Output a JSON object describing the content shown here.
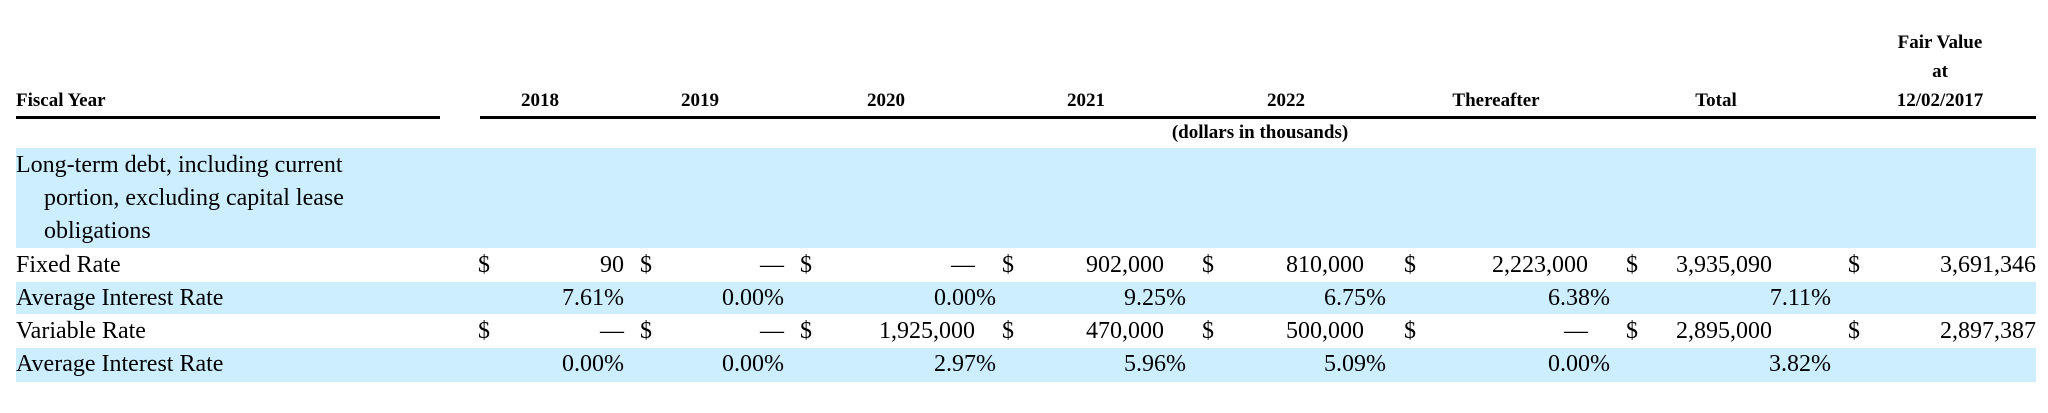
{
  "header": {
    "fiscal_year": "Fiscal Year",
    "columns": [
      "2018",
      "2019",
      "2020",
      "2021",
      "2022",
      "Thereafter",
      "Total"
    ],
    "fair_value_lines": [
      "Fair Value",
      "at",
      "12/02/2017"
    ],
    "units": "(dollars in thousands)"
  },
  "section": {
    "title_lines": [
      "Long-term debt, including current",
      "portion, excluding capital lease",
      "obligations"
    ]
  },
  "currency": "$",
  "rows": [
    {
      "label": "Fixed Rate",
      "dollar": true,
      "values": [
        "90",
        "—",
        "—",
        "902,000",
        "810,000",
        "2,223,000",
        "3,935,090",
        "3,691,346"
      ]
    },
    {
      "label": "Average Interest Rate",
      "dollar": false,
      "values": [
        "7.61%",
        "0.00%",
        "0.00%",
        "9.25%",
        "6.75%",
        "6.38%",
        "7.11%",
        ""
      ]
    },
    {
      "label": "Variable Rate",
      "dollar": true,
      "values": [
        "—",
        "—",
        "1,925,000",
        "470,000",
        "500,000",
        "—",
        "2,895,000",
        "2,897,387"
      ]
    },
    {
      "label": "Average Interest Rate",
      "dollar": false,
      "values": [
        "0.00%",
        "0.00%",
        "2.97%",
        "5.96%",
        "5.09%",
        "0.00%",
        "3.82%",
        ""
      ]
    }
  ],
  "colors": {
    "band": "#cceeff",
    "text": "#000000"
  }
}
